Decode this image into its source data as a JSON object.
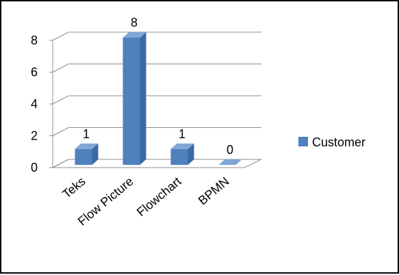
{
  "chart_data": {
    "type": "bar",
    "categories": [
      "Teks",
      "Flow Picture",
      "Flowchart",
      "BPMN"
    ],
    "series": [
      {
        "name": "Customer",
        "values": [
          1,
          8,
          1,
          0
        ],
        "color": "#4f81bd"
      }
    ],
    "y_ticks": [
      "0",
      "2",
      "4",
      "6",
      "8"
    ],
    "ylim": [
      0,
      8
    ],
    "grid": true,
    "legend_position": "right",
    "three_d": true,
    "data_labels": [
      "1",
      "8",
      "1",
      "0"
    ]
  }
}
